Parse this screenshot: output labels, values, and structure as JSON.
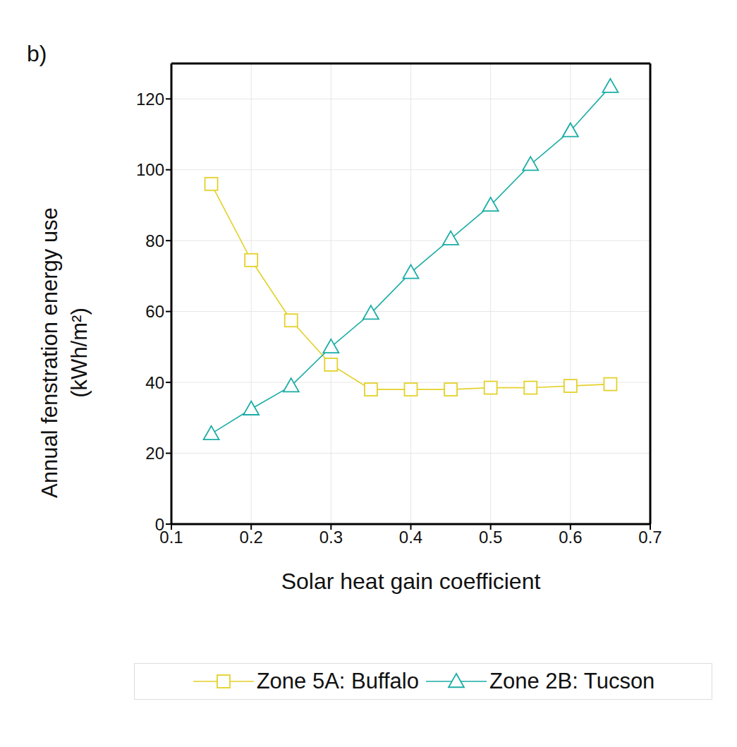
{
  "chart_data": {
    "type": "line",
    "title": "b)",
    "x_label": "Solar heat gain coefficient",
    "y_label": "Annual fenstration energy use (kWh/m²)",
    "x": [
      0.15,
      0.2,
      0.25,
      0.3,
      0.35,
      0.4,
      0.45,
      0.5,
      0.55,
      0.6,
      0.65
    ],
    "series": [
      {
        "name": "Zone 5A: Buffalo",
        "color": "#e3d12a",
        "marker": "square",
        "values": [
          96,
          74.5,
          57.5,
          45,
          38,
          38,
          38,
          38.5,
          38.5,
          39,
          39.5
        ]
      },
      {
        "name": "Zone 2B: Tucson",
        "color": "#1aada5",
        "marker": "triangle",
        "values": [
          25.5,
          32.5,
          39,
          50,
          59.5,
          71,
          80.5,
          90,
          101.5,
          111,
          123.5
        ]
      }
    ],
    "xlim": [
      0.1,
      0.7
    ],
    "xticks": [
      0.1,
      0.2,
      0.3,
      0.4,
      0.5,
      0.6,
      0.7
    ],
    "ylim": [
      0,
      130
    ],
    "yticks": [
      0,
      20,
      40,
      60,
      80,
      100,
      120
    ],
    "grid": true,
    "legend": "bottom"
  }
}
